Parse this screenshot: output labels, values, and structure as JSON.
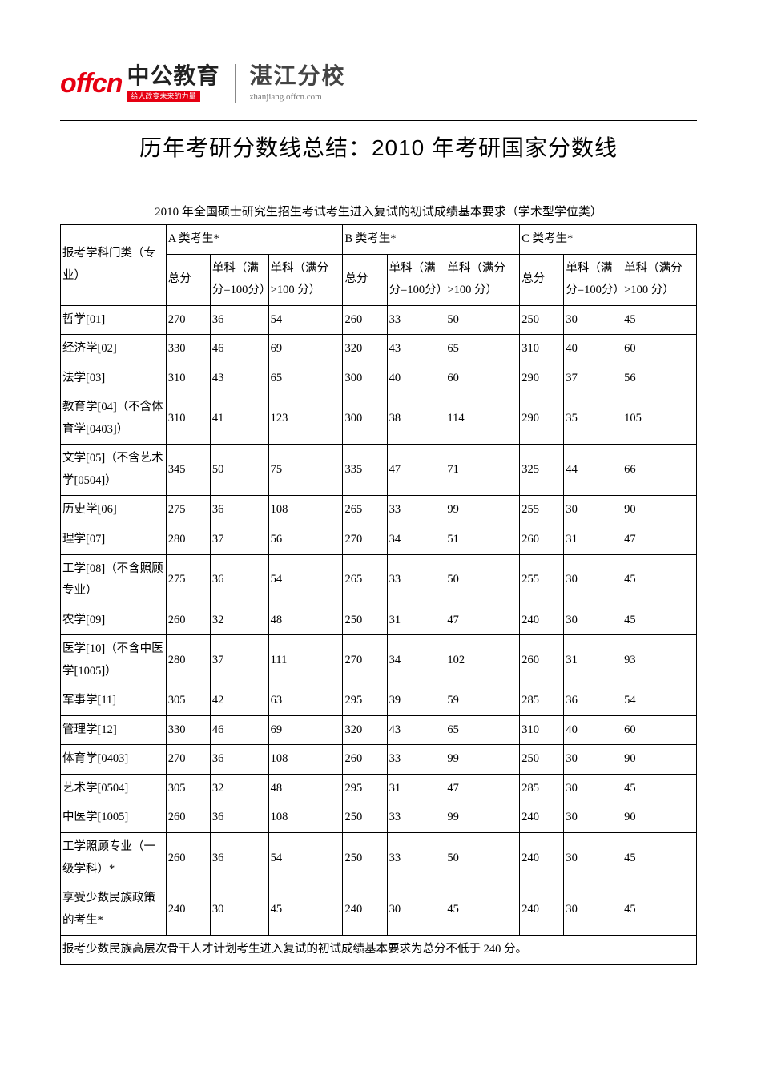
{
  "header": {
    "logo_roman": "offcn",
    "logo_cn": "中公教育",
    "logo_slogan": "给人改变未来的力量",
    "branch_name": "湛江分校",
    "branch_url": "zhanjiang.offcn.com"
  },
  "title": "历年考研分数线总结：2010 年考研国家分数线",
  "table": {
    "caption": "2010 年全国硕士研究生招生考试考生进入复试的初试成绩基本要求（学术型学位类）",
    "group_labels": [
      "A 类考生*",
      "B 类考生*",
      "C 类考生*"
    ],
    "col_subject": "报考学科门类（专业）",
    "sub_headers": {
      "total": "总分",
      "s100": "单科（满分=100分）",
      "sgt100": "单科（满分>100 分）"
    },
    "rows": [
      {
        "subj": "哲学[01]",
        "d": [
          "270",
          "36",
          "54",
          "260",
          "33",
          "50",
          "250",
          "30",
          "45"
        ]
      },
      {
        "subj": "经济学[02]",
        "d": [
          "330",
          "46",
          "69",
          "320",
          "43",
          "65",
          "310",
          "40",
          "60"
        ]
      },
      {
        "subj": "法学[03]",
        "d": [
          "310",
          "43",
          "65",
          "300",
          "40",
          "60",
          "290",
          "37",
          "56"
        ]
      },
      {
        "subj": "教育学[04]（不含体育学[0403]）",
        "d": [
          "310",
          "41",
          "123",
          "300",
          "38",
          "114",
          "290",
          "35",
          "105"
        ]
      },
      {
        "subj": "文学[05]（不含艺术学[0504]）",
        "d": [
          "345",
          "50",
          "75",
          "335",
          "47",
          "71",
          "325",
          "44",
          "66"
        ]
      },
      {
        "subj": "历史学[06]",
        "d": [
          "275",
          "36",
          "108",
          "265",
          "33",
          "99",
          "255",
          "30",
          "90"
        ]
      },
      {
        "subj": "理学[07]",
        "d": [
          "280",
          "37",
          "56",
          "270",
          "34",
          "51",
          "260",
          "31",
          "47"
        ]
      },
      {
        "subj": "工学[08]（不含照顾专业）",
        "d": [
          "275",
          "36",
          "54",
          "265",
          "33",
          "50",
          "255",
          "30",
          "45"
        ]
      },
      {
        "subj": "农学[09]",
        "d": [
          "260",
          "32",
          "48",
          "250",
          "31",
          "47",
          "240",
          "30",
          "45"
        ]
      },
      {
        "subj": "医学[10]（不含中医学[1005]）",
        "d": [
          "280",
          "37",
          "111",
          "270",
          "34",
          "102",
          "260",
          "31",
          "93"
        ]
      },
      {
        "subj": "军事学[11]",
        "d": [
          "305",
          "42",
          "63",
          "295",
          "39",
          "59",
          "285",
          "36",
          "54"
        ]
      },
      {
        "subj": "管理学[12]",
        "d": [
          "330",
          "46",
          "69",
          "320",
          "43",
          "65",
          "310",
          "40",
          "60"
        ]
      },
      {
        "subj": "体育学[0403]",
        "d": [
          "270",
          "36",
          "108",
          "260",
          "33",
          "99",
          "250",
          "30",
          "90"
        ]
      },
      {
        "subj": "艺术学[0504]",
        "d": [
          "305",
          "32",
          "48",
          "295",
          "31",
          "47",
          "285",
          "30",
          "45"
        ]
      },
      {
        "subj": "中医学[1005]",
        "d": [
          "260",
          "36",
          "108",
          "250",
          "33",
          "99",
          "240",
          "30",
          "90"
        ]
      },
      {
        "subj": "工学照顾专业（一级学科）*",
        "d": [
          "260",
          "36",
          "54",
          "250",
          "33",
          "50",
          "240",
          "30",
          "45"
        ]
      },
      {
        "subj": "享受少数民族政策的考生*",
        "d": [
          "240",
          "30",
          "45",
          "240",
          "30",
          "45",
          "240",
          "30",
          "45"
        ]
      }
    ],
    "footnote": "报考少数民族高层次骨干人才计划考生进入复试的初试成绩基本要求为总分不低于 240 分。"
  }
}
